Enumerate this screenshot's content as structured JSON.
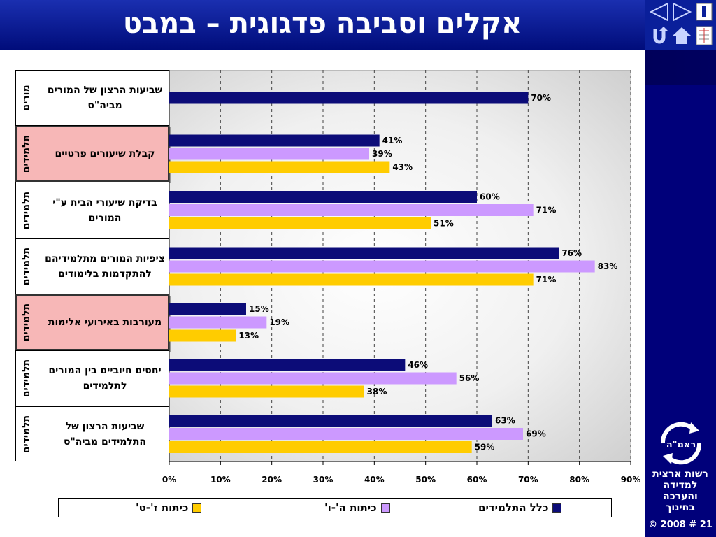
{
  "slide": {
    "title": "אקלים וסביבה פדגוגית – במבט",
    "footer": "© 2008 # 21",
    "org_lines": [
      "רשות ארצית",
      "למדידה",
      "והערכה",
      "בחינוך"
    ],
    "logo_text": "ראמ\"ה"
  },
  "nav_icons": [
    "back-arrow-icon",
    "forward-arrow-icon",
    "info-icon",
    "return-icon",
    "home-icon",
    "document-icon"
  ],
  "colors": {
    "all_students": "#0c0c78",
    "grade_5_6": "#cc99ff",
    "grade_7_8": "#ffcc00",
    "highlight": "#f7b7b7"
  },
  "chart_data": {
    "type": "bar",
    "orientation": "horizontal",
    "categories": [
      "שביעות הרצון של המורים מביה\"ס",
      "קבלת שיעורים פרטיים",
      "בדיקת שיעורי הבית ע\"י המורים",
      "ציפיות המורים מתלמידיהם להתקדמות בלימודים",
      "מעורבות באירועי אלימות",
      "יחסים חיוביים בין המורים לתלמידים",
      "שביעות הרצון של התלמידים מביה\"ס"
    ],
    "groups": [
      "מורים",
      "תלמידים",
      "תלמידים",
      "תלמידים",
      "תלמידים",
      "תלמידים",
      "תלמידים"
    ],
    "highlighted": [
      false,
      true,
      false,
      false,
      true,
      false,
      false
    ],
    "series": [
      {
        "name": "כלל התלמידים",
        "values": [
          70,
          41,
          60,
          76,
          15,
          46,
          63
        ]
      },
      {
        "name": "כיתות ה'-ו'",
        "values": [
          null,
          39,
          71,
          83,
          19,
          56,
          69
        ]
      },
      {
        "name": "כיתות ז'-ט'",
        "values": [
          null,
          43,
          51,
          71,
          13,
          38,
          59
        ]
      }
    ],
    "value_labels": [
      [
        "70%",
        "",
        ""
      ],
      [
        "41%",
        "39%",
        "43%"
      ],
      [
        "60%",
        "71%",
        "51%"
      ],
      [
        "76%",
        "83%",
        "71%"
      ],
      [
        "15%",
        "19%",
        "13%"
      ],
      [
        "46%",
        "56%",
        "38%"
      ],
      [
        "63%",
        "69%",
        "59%"
      ]
    ],
    "xlim": [
      0,
      90
    ],
    "xticks": [
      "0%",
      "10%",
      "20%",
      "30%",
      "40%",
      "50%",
      "60%",
      "70%",
      "80%",
      "90%"
    ],
    "grid": "vertical-dashed",
    "legend_position": "bottom"
  }
}
